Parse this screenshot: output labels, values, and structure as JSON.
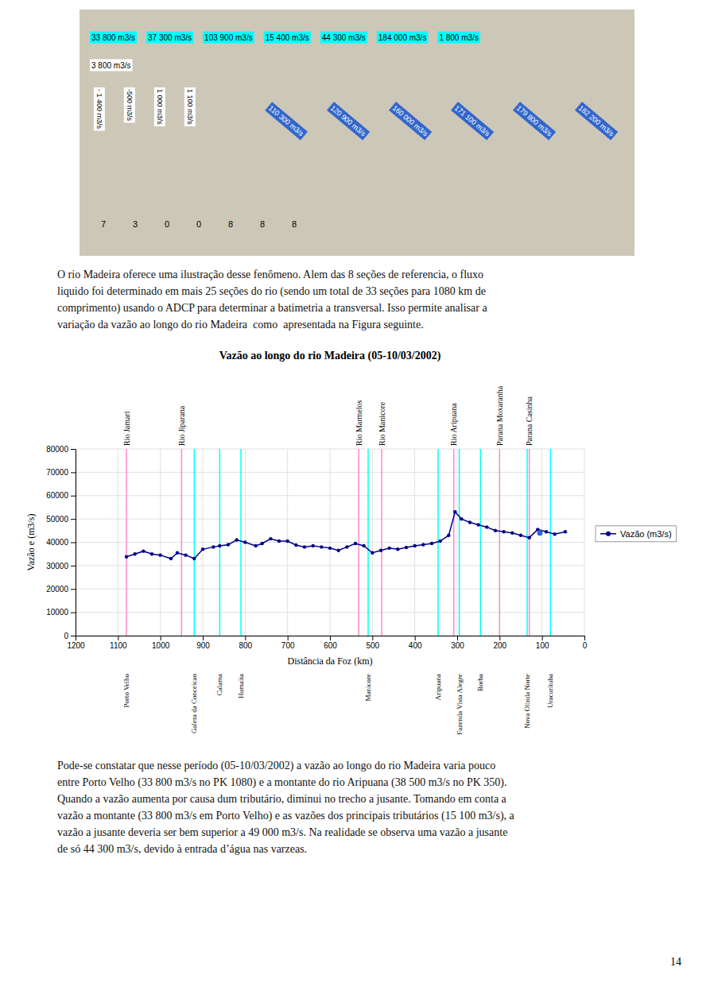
{
  "chart_data": {
    "type": "line",
    "title": "Vazão ao longo do rio Madeira (05-10/03/2002)",
    "x_label": "Distância da Foz (km)",
    "y_label": "Vazão e (m3/s)",
    "x": [
      1080,
      1060,
      1040,
      1020,
      1000,
      975,
      960,
      940,
      920,
      900,
      875,
      860,
      840,
      820,
      800,
      775,
      760,
      740,
      720,
      700,
      680,
      660,
      640,
      620,
      600,
      580,
      560,
      540,
      520,
      500,
      480,
      460,
      440,
      420,
      400,
      380,
      360,
      340,
      320,
      305,
      290,
      270,
      250,
      230,
      210,
      190,
      170,
      150,
      130,
      110,
      90,
      70,
      45
    ],
    "series": [
      {
        "name": "Vazão (m3/s)",
        "color": "darkblue",
        "marker": "circle",
        "values": [
          33800,
          35000,
          36200,
          35000,
          34500,
          33000,
          35500,
          34500,
          33000,
          37000,
          38000,
          38500,
          39000,
          41000,
          40000,
          38500,
          39500,
          41500,
          40500,
          40500,
          38800,
          38000,
          38500,
          38000,
          37500,
          36500,
          38000,
          39500,
          38500,
          35500,
          36500,
          37500,
          37000,
          37800,
          38500,
          39000,
          39500,
          40500,
          43000,
          53000,
          50000,
          48500,
          47500,
          46500,
          45000,
          44500,
          44000,
          43000,
          42000,
          45500,
          44500,
          43500,
          44500
        ]
      },
      {
        "type": "scatter",
        "color": "#3366cc",
        "marker": "circle",
        "x": [
          105
        ],
        "values": [
          44000
        ]
      }
    ],
    "xlim": [
      1200,
      0
    ],
    "ylim": [
      0,
      80000
    ],
    "xticks": [
      1200,
      1100,
      1000,
      900,
      800,
      700,
      600,
      500,
      400,
      300,
      200,
      100,
      0
    ],
    "yticks": [
      0,
      10000,
      20000,
      30000,
      40000,
      50000,
      60000,
      70000,
      80000
    ],
    "grid": true,
    "legend": "right",
    "vlines": [
      {
        "x": 1080,
        "color": "#ff88cc"
      },
      {
        "x": 950,
        "color": "#ff88cc"
      },
      {
        "x": 532,
        "color": "#ff88cc"
      },
      {
        "x": 478,
        "color": "#ff88cc"
      },
      {
        "x": 308,
        "color": "#ff88cc"
      },
      {
        "x": 200,
        "color": "#ff88cc"
      },
      {
        "x": 130,
        "color": "#ff88cc"
      },
      {
        "x": 920,
        "color": "cyan"
      },
      {
        "x": 860,
        "color": "cyan"
      },
      {
        "x": 810,
        "color": "cyan"
      },
      {
        "x": 510,
        "color": "cyan"
      },
      {
        "x": 345,
        "color": "cyan"
      },
      {
        "x": 295,
        "color": "cyan"
      },
      {
        "x": 245,
        "color": "cyan"
      },
      {
        "x": 135,
        "color": "cyan"
      },
      {
        "x": 80,
        "color": "cyan"
      }
    ],
    "top_labels": [
      {
        "x": 1080,
        "label": "Rio Jamari"
      },
      {
        "x": 950,
        "label": "Rio Jiparana"
      },
      {
        "x": 532,
        "label": "Rio Marmelos"
      },
      {
        "x": 478,
        "label": "Rio Manicore"
      },
      {
        "x": 308,
        "label": "Rio Aripuana"
      },
      {
        "x": 200,
        "label": "Parana Moxaranha"
      },
      {
        "x": 130,
        "label": "Parana Casinha"
      }
    ],
    "bottom_labels": [
      {
        "x": 1080,
        "label": "Porto Velho"
      },
      {
        "x": 920,
        "label": "Galera da Conceicao"
      },
      {
        "x": 860,
        "label": "Calama"
      },
      {
        "x": 810,
        "label": "Humaita"
      },
      {
        "x": 510,
        "label": "Manicore"
      },
      {
        "x": 345,
        "label": "Aripuana"
      },
      {
        "x": 295,
        "label": "Fazenda Vista Alegre"
      },
      {
        "x": 245,
        "label": "Borba"
      },
      {
        "x": 135,
        "label": "Nova Olinda Norte"
      },
      {
        "x": 80,
        "label": "Uracurituba"
      }
    ]
  },
  "page": {
    "map_cyan_labels": [
      "33 800 m3/s",
      "37 300 m3/s",
      "103 900 m3/s",
      "15 400 m3/s",
      "44 300 m3/s",
      "184 000 m3/s",
      "1 800 m3/s"
    ],
    "map_white_labels": [
      "3 800 m3/s"
    ],
    "map_white_vertical_labels": [
      "- 1 400 m3/s",
      "-500 m3/s",
      "1 000 m3/s",
      "1 100 m3/s"
    ],
    "map_blue_labels": [
      "110 300 m3/s",
      "120 900 m3/s",
      "160 000 m3/s",
      "171 100 m3/s",
      "179 800 m3/s",
      "182 200 m3/s"
    ],
    "map_small_numbers": [
      "7",
      "3",
      "0",
      "0",
      "8",
      "8",
      "8"
    ],
    "paragraph1": "O rio Madeira oferece uma ilustração desse fenômeno. Alem das 8 seções de referencia, o fluxo\nliquido foi determinado em mais 25 seções do rio (sendo um total de 33 seções para 1080 km de\ncomprimento) usando o ADCP para determinar a batimetria a transversal. Isso permite analisar a\nvariação da vazão ao longo do rio Madeira  como  apresentada na Figura seguinte.",
    "paragraph2": "Pode-se constatar que nesse período (05-10/03/2002) a vazão ao longo do rio Madeira varia pouco\nentre Porto Velho (33 800 m3/s no PK 1080) e a montante do rio Aripuana (38 500 m3/s no PK 350).\nQuando a vazão aumenta por causa dum tributário, diminui no trecho a jusante. Tomando em conta a\nvazão a montante (33 800 m3/s em Porto Velho) e as vazões dos principais tributários (15 100 m3/s), a\nvazão a jusante deveria ser bem superior a 49 000 m3/s. Na realidade se observa uma vazão a jusante\nde só 44 300 m3/s, devido à entrada d’água nas varzeas.",
    "page_number": "14"
  }
}
